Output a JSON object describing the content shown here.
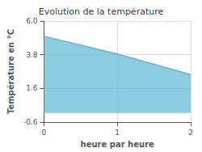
{
  "chart_data": {
    "type": "line",
    "title": "Evolution de la température",
    "xlabel": "heure par heure",
    "ylabel": "Température en °C",
    "x": [
      0,
      1,
      2
    ],
    "values": [
      5.0,
      3.85,
      2.5
    ],
    "color": "#5bb8d4",
    "xlim": [
      0,
      2
    ],
    "xticks": [
      0,
      1,
      2
    ],
    "ylim": [
      -0.6,
      6.0
    ],
    "yticks": [
      -0.6,
      1.6,
      3.8,
      {
        "value": 6.0,
        "label": "6.0"
      }
    ],
    "grid": true
  }
}
